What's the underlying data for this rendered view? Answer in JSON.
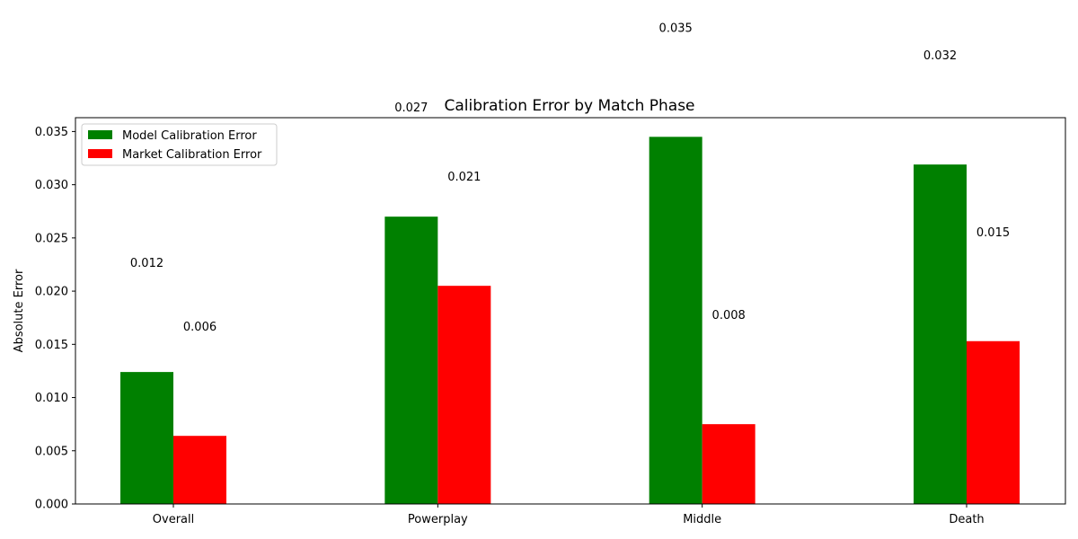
{
  "chart_data": {
    "type": "bar",
    "title": "Calibration Error by Match Phase",
    "xlabel": "",
    "ylabel": "Absolute Error",
    "categories": [
      "Overall",
      "Powerplay",
      "Middle",
      "Death"
    ],
    "series": [
      {
        "name": "Model Calibration Error",
        "color": "#008000",
        "values": [
          0.0124,
          0.027,
          0.0345,
          0.0319
        ],
        "labels": [
          "0.012",
          "0.027",
          "0.035",
          "0.032"
        ]
      },
      {
        "name": "Market Calibration Error",
        "color": "#ff0000",
        "values": [
          0.0064,
          0.0205,
          0.0075,
          0.0153
        ],
        "labels": [
          "0.006",
          "0.021",
          "0.008",
          "0.015"
        ]
      }
    ],
    "ylim": [
      0,
      0.0363
    ],
    "yticks": [
      "0.000",
      "0.005",
      "0.010",
      "0.015",
      "0.020",
      "0.025",
      "0.030",
      "0.035"
    ],
    "grid": false,
    "legend_position": "top-left"
  }
}
